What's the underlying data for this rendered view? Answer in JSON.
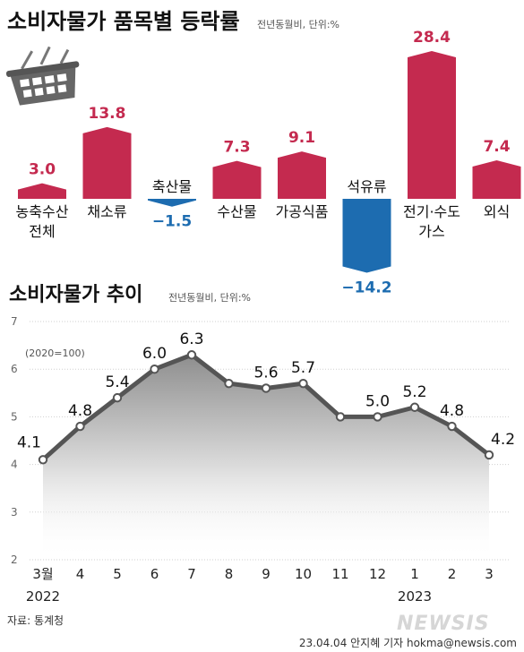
{
  "chart_data": [
    {
      "type": "bar",
      "title": "소비자물가 품목별 등락률",
      "note": "전년동월비, 단위:%",
      "categories": [
        {
          "label": [
            "농축수산",
            "전체"
          ]
        },
        {
          "label": [
            "채소류"
          ]
        },
        {
          "label": [
            "축산물"
          ]
        },
        {
          "label": [
            "수산물"
          ]
        },
        {
          "label": [
            "가공식품"
          ]
        },
        {
          "label": [
            "석유류"
          ]
        },
        {
          "label": [
            "전기·수도",
            "가스"
          ]
        },
        {
          "label": [
            "외식"
          ]
        }
      ],
      "values": [
        3.0,
        13.8,
        -1.5,
        7.3,
        9.1,
        -14.2,
        28.4,
        7.4
      ],
      "value_labels": [
        "3.0",
        "13.8",
        "−1.5",
        "7.3",
        "9.1",
        "−14.2",
        "28.4",
        "7.4"
      ],
      "positive_color": "#c42a4f",
      "negative_color": "#1d6cb0"
    },
    {
      "type": "area",
      "title": "소비자물가 추이",
      "note": "전년동월비, 단위:%",
      "index_note": "(2020=100)",
      "x": [
        "3월",
        "4",
        "5",
        "6",
        "7",
        "8",
        "9",
        "10",
        "11",
        "12",
        "1",
        "2",
        "3"
      ],
      "year_labels": [
        {
          "at": 0,
          "text": "2022"
        },
        {
          "at": 10,
          "text": "2023"
        }
      ],
      "values": [
        4.1,
        4.8,
        5.4,
        6.0,
        6.3,
        5.7,
        5.6,
        5.7,
        5.0,
        5.0,
        5.2,
        4.8,
        4.2
      ],
      "point_labels": [
        {
          "i": 0,
          "text": "4.1"
        },
        {
          "i": 1,
          "text": "4.8"
        },
        {
          "i": 2,
          "text": "5.4"
        },
        {
          "i": 3,
          "text": "6.0"
        },
        {
          "i": 4,
          "text": "6.3"
        },
        {
          "i": 6,
          "text": "5.6"
        },
        {
          "i": 7,
          "text": "5.7"
        },
        {
          "i": 9,
          "text": "5.0"
        },
        {
          "i": 10,
          "text": "5.2"
        },
        {
          "i": 11,
          "text": "4.8"
        },
        {
          "i": 12,
          "text": "4.2"
        }
      ],
      "ylim": [
        2,
        7
      ],
      "yticks": [
        "2",
        "3",
        "4",
        "5",
        "6",
        "7"
      ],
      "grid": true,
      "line_color": "#555555"
    }
  ],
  "source": "자료: 통계청",
  "credit": "23.04.04 안지혜 기자 hokma@newsis.com",
  "logo_text": "NEWSIS"
}
